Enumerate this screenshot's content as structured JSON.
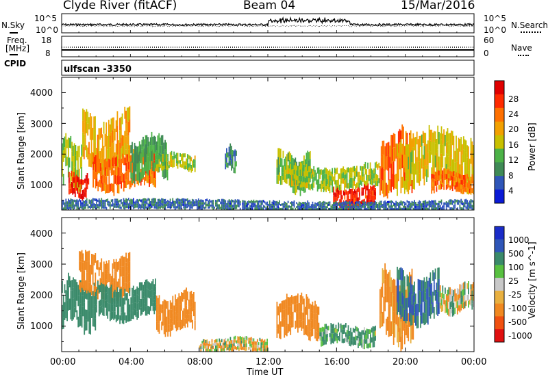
{
  "header": {
    "title": "Clyde River (fitACF)",
    "beam": "Beam 04",
    "date": "15/Mar/2016"
  },
  "noise_panel": {
    "left_label": "N.Sky",
    "right_label": "N.Search",
    "left_ticks": [
      "10^5",
      "10^0"
    ],
    "right_ticks": [
      "10^5",
      "10^0"
    ]
  },
  "freq_panel": {
    "left_label_1": "Freq.",
    "left_label_2": "[MHz]",
    "right_label": "Nave",
    "left_ticks": [
      "18",
      "8"
    ],
    "right_ticks": [
      "60",
      "0"
    ]
  },
  "cpid": {
    "label": "CPID",
    "value": "ulfscan -3350"
  },
  "x_axis": {
    "label": "Time UT",
    "ticks": [
      "00:00",
      "04:00",
      "08:00",
      "12:00",
      "16:00",
      "20:00",
      "00:00"
    ]
  },
  "colors": {
    "power_scale": [
      "#0a1ad6",
      "#2f56b8",
      "#3f8a56",
      "#4cb247",
      "#c8c000",
      "#f2a000",
      "#ff7000",
      "#ff2a00",
      "#e00000"
    ],
    "velocity_scale": [
      "#1a2cc8",
      "#2f56b8",
      "#3a8a6a",
      "#58c040",
      "#c8c8c8",
      "#e8b040",
      "#f08820",
      "#f05010",
      "#e01010"
    ]
  },
  "chart_data": [
    {
      "type": "heatmap",
      "title": "",
      "ylabel": "Slant Range [km]",
      "xlabel": "",
      "ylim": [
        180,
        4500
      ],
      "y_ticks": [
        "1000",
        "2000",
        "3000",
        "4000"
      ],
      "colorbar": {
        "label": "Power [dB]",
        "ticks": [
          "28",
          "24",
          "20",
          "16",
          "12",
          "8",
          "4"
        ],
        "range": [
          0,
          30
        ]
      },
      "regions": [
        {
          "t": [
            0.0,
            1.2
          ],
          "r": [
            1000,
            2400
          ],
          "value": 14
        },
        {
          "t": [
            0.4,
            1.6
          ],
          "r": [
            600,
            1300
          ],
          "value": 26
        },
        {
          "t": [
            1.2,
            4.0
          ],
          "r": [
            1600,
            3200
          ],
          "value": 18
        },
        {
          "t": [
            1.8,
            5.5
          ],
          "r": [
            900,
            2000
          ],
          "value": 22
        },
        {
          "t": [
            4.0,
            6.2
          ],
          "r": [
            1300,
            2500
          ],
          "value": 10
        },
        {
          "t": [
            5.5,
            7.8
          ],
          "r": [
            1500,
            2000
          ],
          "value": 14
        },
        {
          "t": [
            9.5,
            10.2
          ],
          "r": [
            1500,
            2200
          ],
          "value": 8
        },
        {
          "t": [
            12.5,
            14.5
          ],
          "r": [
            900,
            2000
          ],
          "value": 12
        },
        {
          "t": [
            13.0,
            18.5
          ],
          "r": [
            900,
            1600
          ],
          "value": 14
        },
        {
          "t": [
            15.8,
            18.3
          ],
          "r": [
            300,
            900
          ],
          "value": 26
        },
        {
          "t": [
            18.5,
            20.5
          ],
          "r": [
            900,
            2600
          ],
          "value": 22
        },
        {
          "t": [
            19.5,
            24.0
          ],
          "r": [
            1000,
            2600
          ],
          "value": 16
        },
        {
          "t": [
            21.5,
            24.0
          ],
          "r": [
            800,
            1400
          ],
          "value": 22
        },
        {
          "t": [
            0.0,
            24.0
          ],
          "r": [
            180,
            500
          ],
          "value": 6
        }
      ]
    },
    {
      "type": "heatmap",
      "title": "",
      "ylabel": "Slant Range [km]",
      "xlabel": "Time UT",
      "ylim": [
        180,
        4500
      ],
      "y_ticks": [
        "1000",
        "2000",
        "3000",
        "4000"
      ],
      "colorbar": {
        "label": "Velocity [m s^-1]",
        "ticks": [
          "1000",
          "500",
          "100",
          "25",
          "-25",
          "-100",
          "-500",
          "-1000"
        ],
        "range": [
          -1000,
          1000
        ]
      },
      "regions": [
        {
          "t": [
            0.0,
            2.0
          ],
          "r": [
            1000,
            2400
          ],
          "value": 300
        },
        {
          "t": [
            1.0,
            4.0
          ],
          "r": [
            2000,
            3200
          ],
          "value": -300
        },
        {
          "t": [
            2.0,
            5.5
          ],
          "r": [
            1300,
            2300
          ],
          "value": 300
        },
        {
          "t": [
            5.5,
            7.8
          ],
          "r": [
            900,
            2000
          ],
          "value": -300
        },
        {
          "t": [
            8.0,
            12.0
          ],
          "r": [
            180,
            600
          ],
          "value": -50
        },
        {
          "t": [
            12.5,
            15.0
          ],
          "r": [
            700,
            1900
          ],
          "value": -300
        },
        {
          "t": [
            15.0,
            18.3
          ],
          "r": [
            400,
            1000
          ],
          "value": 150
        },
        {
          "t": [
            18.5,
            20.5
          ],
          "r": [
            600,
            2600
          ],
          "value": -200
        },
        {
          "t": [
            19.5,
            22.0
          ],
          "r": [
            1200,
            2600
          ],
          "value": 500
        },
        {
          "t": [
            22.0,
            24.0
          ],
          "r": [
            1500,
            2300
          ],
          "value": 10
        }
      ]
    }
  ]
}
